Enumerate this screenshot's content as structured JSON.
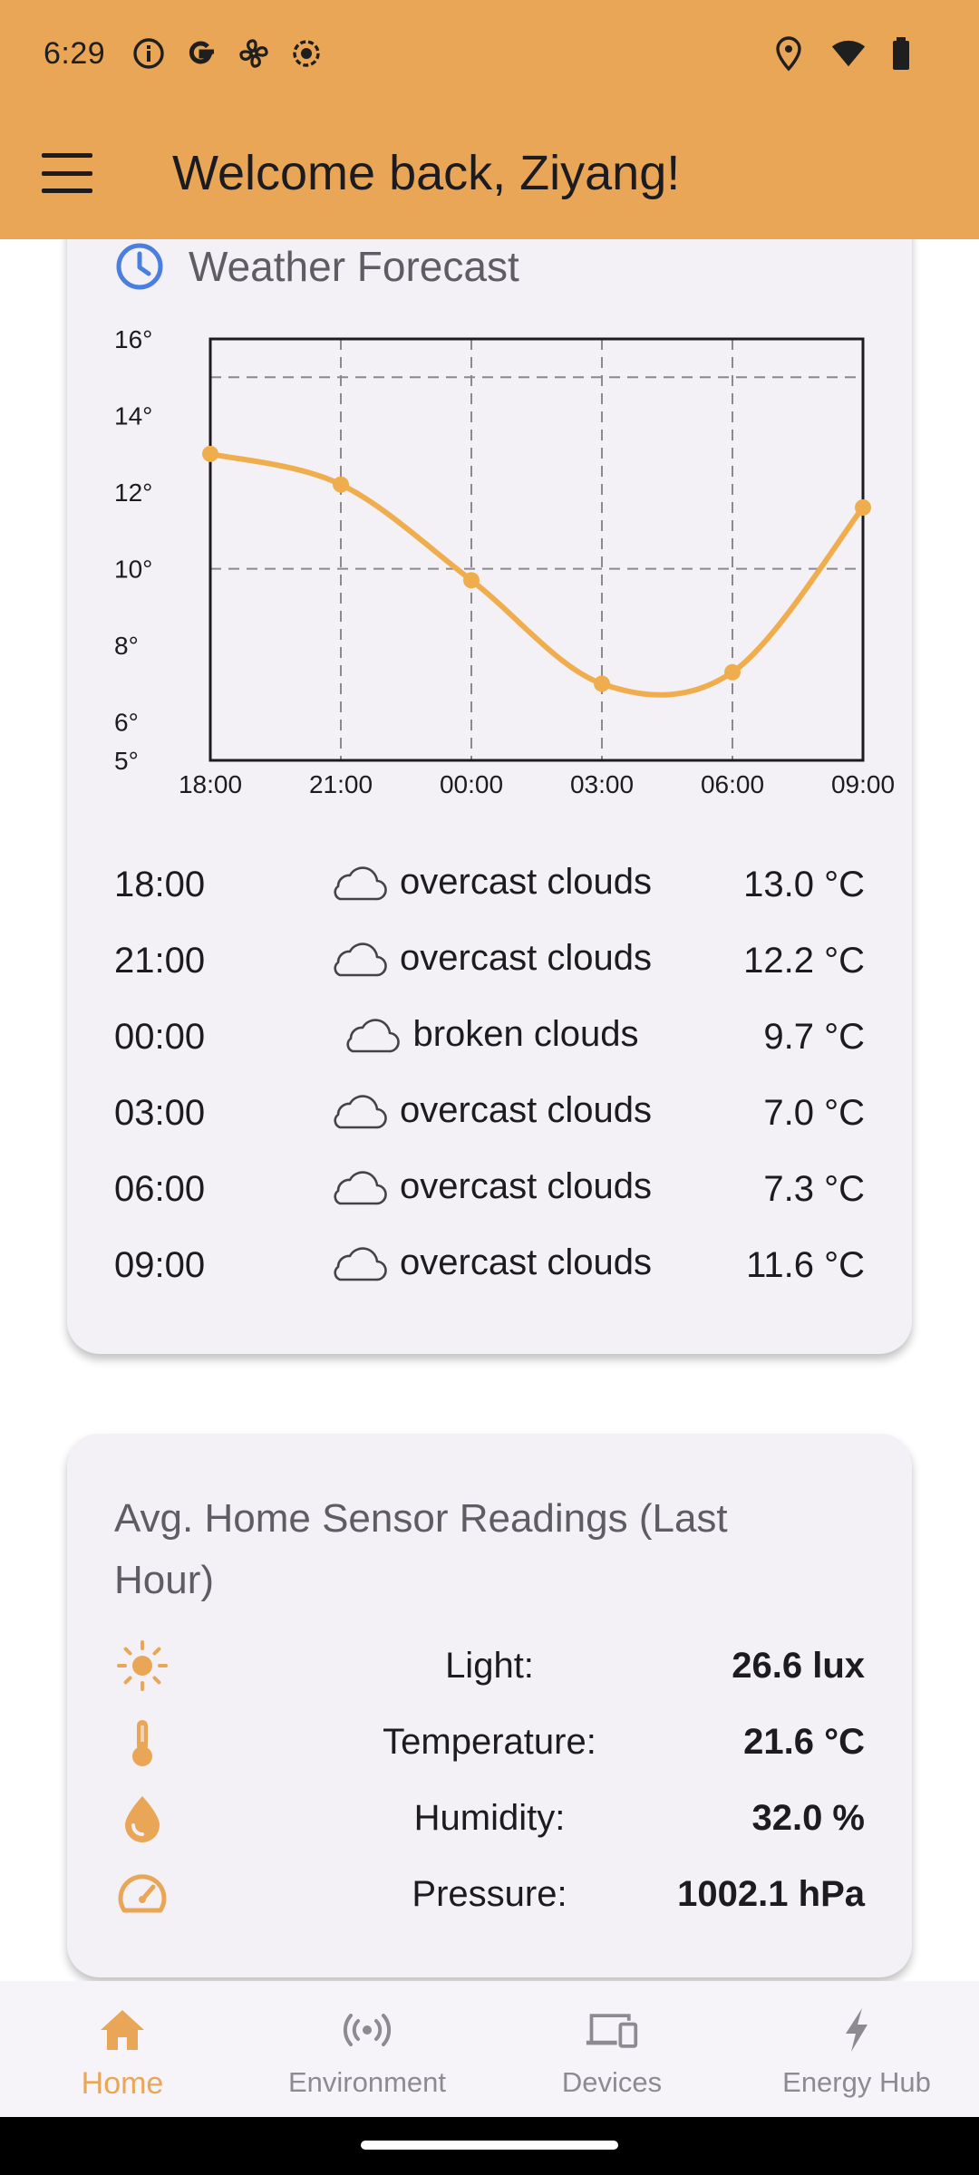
{
  "status_bar": {
    "time": "6:29"
  },
  "app_bar": {
    "title": "Welcome back, Ziyang!"
  },
  "forecast": {
    "title": "Weather Forecast",
    "rows": [
      {
        "time": "18:00",
        "desc": "overcast clouds",
        "temp": "13.0 °C"
      },
      {
        "time": "21:00",
        "desc": "overcast clouds",
        "temp": "12.2 °C"
      },
      {
        "time": "00:00",
        "desc": "broken clouds",
        "temp": "9.7 °C"
      },
      {
        "time": "03:00",
        "desc": "overcast clouds",
        "temp": "7.0 °C"
      },
      {
        "time": "06:00",
        "desc": "overcast clouds",
        "temp": "7.3 °C"
      },
      {
        "time": "09:00",
        "desc": "overcast clouds",
        "temp": "11.6 °C"
      }
    ]
  },
  "chart_data": {
    "type": "line",
    "categories": [
      "18:00",
      "21:00",
      "00:00",
      "03:00",
      "06:00",
      "09:00"
    ],
    "series": [
      {
        "values": [
          13.0,
          12.2,
          9.7,
          7.0,
          7.3,
          11.6
        ]
      }
    ],
    "ylim": [
      5,
      16
    ],
    "yticks": [
      "16°",
      "14°",
      "12°",
      "10°",
      "8°",
      "6°",
      "5°"
    ],
    "ytick_values": [
      16,
      14,
      12,
      10,
      8,
      6,
      5
    ],
    "grid": true,
    "color": "#f0ad4e"
  },
  "sensors": {
    "title": "Avg. Home Sensor Readings (Last Hour)",
    "items": [
      {
        "icon": "sun-icon",
        "label": "Light:",
        "value": "26.6 lux"
      },
      {
        "icon": "thermometer-icon",
        "label": "Temperature:",
        "value": "21.6 °C"
      },
      {
        "icon": "water-drop-icon",
        "label": "Humidity:",
        "value": "32.0 %"
      },
      {
        "icon": "gauge-icon",
        "label": "Pressure:",
        "value": "1002.1 hPa"
      }
    ]
  },
  "bottom_nav": {
    "items": [
      {
        "label": "Home",
        "icon": "home-icon",
        "active": true
      },
      {
        "label": "Environment",
        "icon": "sensor-icon",
        "active": false
      },
      {
        "label": "Devices",
        "icon": "devices-icon",
        "active": false
      },
      {
        "label": "Energy Hub",
        "icon": "bolt-icon",
        "active": false
      }
    ]
  },
  "colors": {
    "accent": "#eaa657",
    "card": "#f3f0f6",
    "icon_blue": "#4a7fe0"
  }
}
